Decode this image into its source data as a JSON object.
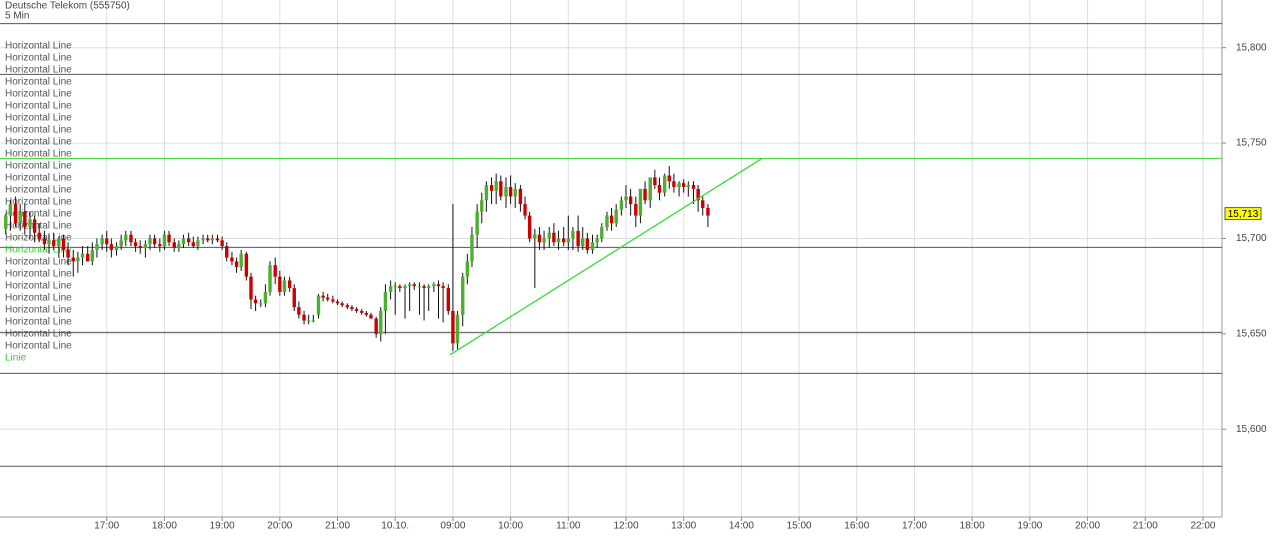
{
  "chart_data": {
    "type": "candlestick",
    "title": "Deutsche Telekom (555750)",
    "subtitle": "5 Min",
    "xlim": [
      -0.85,
      20.33
    ],
    "ylim": [
      15554,
      15825
    ],
    "xticks": [
      {
        "value": 1,
        "label": "17:00"
      },
      {
        "value": 2,
        "label": "18:00"
      },
      {
        "value": 3,
        "label": "19:00"
      },
      {
        "value": 4,
        "label": "20:00"
      },
      {
        "value": 5,
        "label": "21:00"
      },
      {
        "value": 6,
        "label": "10.10."
      },
      {
        "value": 7,
        "label": "09:00"
      },
      {
        "value": 8,
        "label": "10:00"
      },
      {
        "value": 9,
        "label": "11:00"
      },
      {
        "value": 10,
        "label": "12:00"
      },
      {
        "value": 11,
        "label": "13:00"
      },
      {
        "value": 12,
        "label": "14:00"
      },
      {
        "value": 13,
        "label": "15:00"
      },
      {
        "value": 14,
        "label": "16:00"
      },
      {
        "value": 15,
        "label": "17:00"
      },
      {
        "value": 16,
        "label": "18:00"
      },
      {
        "value": 17,
        "label": "19:00"
      },
      {
        "value": 18,
        "label": "20:00"
      },
      {
        "value": 19,
        "label": "21:00"
      },
      {
        "value": 20,
        "label": "22:00"
      }
    ],
    "yticks": [
      {
        "value": 15600,
        "label": "15,600"
      },
      {
        "value": 15650,
        "label": "15,650"
      },
      {
        "value": 15700,
        "label": "15,700"
      },
      {
        "value": 15750,
        "label": "15,750"
      },
      {
        "value": 15800,
        "label": "15,800"
      }
    ],
    "grid": true,
    "up_color": "#4caf32",
    "down_color": "#cc0000",
    "candles": {
      "x": [
        -0.75,
        -0.67,
        -0.58,
        -0.5,
        -0.42,
        -0.33,
        -0.25,
        -0.17,
        -0.08,
        0,
        0.08,
        0.17,
        0.25,
        0.33,
        0.42,
        0.5,
        0.58,
        0.67,
        0.75,
        0.83,
        0.92,
        1,
        1.08,
        1.17,
        1.25,
        1.33,
        1.42,
        1.5,
        1.58,
        1.67,
        1.75,
        1.83,
        1.92,
        2,
        2.08,
        2.17,
        2.25,
        2.33,
        2.42,
        2.5,
        2.58,
        2.67,
        2.75,
        2.83,
        2.92,
        3,
        3.08,
        3.17,
        3.25,
        3.33,
        3.42,
        3.5,
        3.58,
        3.67,
        3.75,
        3.83,
        3.92,
        4,
        4.08,
        4.17,
        4.25,
        4.33,
        4.42,
        4.5,
        4.58,
        4.67,
        4.75,
        4.83,
        4.92,
        5,
        5.08,
        5.17,
        5.25,
        5.33,
        5.42,
        5.5,
        5.58,
        5.67,
        5.75,
        5.83,
        5.92,
        6,
        6.08,
        6.17,
        6.25,
        6.33,
        6.42,
        6.5,
        6.58,
        6.67,
        6.75,
        6.83,
        6.92,
        7,
        7.08,
        7.17,
        7.25,
        7.33,
        7.42,
        7.5,
        7.58,
        7.67,
        7.75,
        7.83,
        7.92,
        8,
        8.08,
        8.17,
        8.25,
        8.33,
        8.42,
        8.5,
        8.58,
        8.67,
        8.75,
        8.83,
        8.92,
        9,
        9.08,
        9.17,
        9.25,
        9.33,
        9.42,
        9.5,
        9.58,
        9.67,
        9.75,
        9.83,
        9.92,
        10,
        10.08,
        10.17,
        10.25,
        10.33,
        10.42,
        10.5,
        10.58,
        10.67,
        10.75,
        10.83,
        10.92,
        11,
        11.08,
        11.17,
        11.25,
        11.33,
        11.42
      ],
      "open": [
        15705,
        15712,
        15718,
        15708,
        15714,
        15706,
        15710,
        15703,
        15700,
        15697,
        15699,
        15696,
        15700,
        15694,
        15690,
        15688,
        15690,
        15692,
        15688,
        15694,
        15697,
        15700,
        15697,
        15694,
        15696,
        15699,
        15702,
        15698,
        15696,
        15695,
        15697,
        15700,
        15697,
        15696,
        15702,
        15698,
        15695,
        15697,
        15700,
        15698,
        15696,
        15699,
        15700,
        15699,
        15700,
        15699,
        15696,
        15690,
        15688,
        15685,
        15692,
        15680,
        15668,
        15666,
        15666,
        15672,
        15686,
        15680,
        15672,
        15678,
        15674,
        15664,
        15660,
        15657,
        15657,
        15660,
        15670,
        15669,
        15668,
        15667,
        15666,
        15665,
        15664,
        15663,
        15662,
        15661,
        15660,
        15658,
        15650,
        15662,
        15672,
        15675,
        15675,
        15674,
        15675,
        15676,
        15675,
        15675,
        15674,
        15675,
        15676,
        15675,
        15674,
        15662,
        15645,
        15660,
        15680,
        15688,
        15702,
        15714,
        15720,
        15728,
        15725,
        15730,
        15722,
        15727,
        15722,
        15726,
        15718,
        15712,
        15700,
        15702,
        15698,
        15700,
        15703,
        15698,
        15700,
        15698,
        15700,
        15704,
        15696,
        15700,
        15694,
        15698,
        15700,
        15706,
        15712,
        15708,
        15715,
        15720,
        15722,
        15718,
        15712,
        15726,
        15720,
        15732,
        15728,
        15724,
        15733,
        15730,
        15727,
        15729,
        15727,
        15728,
        15726,
        15720,
        15716
      ],
      "high": [
        15713,
        15720,
        15722,
        15718,
        15718,
        15714,
        15712,
        15708,
        15704,
        15702,
        15703,
        15701,
        15702,
        15698,
        15694,
        15693,
        15696,
        15696,
        15698,
        15700,
        15702,
        15704,
        15700,
        15698,
        15702,
        15704,
        15704,
        15700,
        15699,
        15699,
        15702,
        15702,
        15700,
        15704,
        15704,
        15700,
        15699,
        15702,
        15703,
        15701,
        15701,
        15702,
        15702,
        15702,
        15702,
        15701,
        15698,
        15693,
        15690,
        15694,
        15693,
        15682,
        15670,
        15668,
        15676,
        15688,
        15690,
        15683,
        15680,
        15680,
        15676,
        15667,
        15662,
        15660,
        15660,
        15671,
        15672,
        15671,
        15670,
        15668,
        15667,
        15666,
        15665,
        15664,
        15663,
        15662,
        15661,
        15659,
        15664,
        15676,
        15678,
        15677,
        15676,
        15676,
        15677,
        15677,
        15677,
        15676,
        15676,
        15677,
        15678,
        15677,
        15676,
        15718,
        15662,
        15682,
        15692,
        15706,
        15718,
        15724,
        15730,
        15732,
        15734,
        15733,
        15732,
        15733,
        15729,
        15728,
        15722,
        15714,
        15705,
        15706,
        15704,
        15706,
        15708,
        15704,
        15706,
        15712,
        15706,
        15712,
        15706,
        15703,
        15702,
        15702,
        15708,
        15714,
        15716,
        15718,
        15722,
        15728,
        15726,
        15722,
        15718,
        15730,
        15728,
        15736,
        15732,
        15734,
        15738,
        15734,
        15730,
        15731,
        15730,
        15730,
        15728,
        15722,
        15718
      ],
      "low": [
        15702,
        15704,
        15706,
        15704,
        15702,
        15700,
        15698,
        15698,
        15694,
        15692,
        15694,
        15690,
        15690,
        15686,
        15680,
        15682,
        15686,
        15688,
        15686,
        15690,
        15694,
        15693,
        15690,
        15691,
        15694,
        15696,
        15696,
        15693,
        15692,
        15690,
        15694,
        15695,
        15693,
        15694,
        15696,
        15693,
        15693,
        15695,
        15696,
        15695,
        15694,
        15697,
        15698,
        15697,
        15698,
        15694,
        15688,
        15686,
        15682,
        15683,
        15678,
        15663,
        15662,
        15664,
        15664,
        15670,
        15676,
        15670,
        15670,
        15672,
        15662,
        15658,
        15655,
        15655,
        15656,
        15658,
        15667,
        15667,
        15666,
        15665,
        15664,
        15663,
        15662,
        15661,
        15660,
        15659,
        15658,
        15648,
        15646,
        15650,
        15668,
        15660,
        15672,
        15658,
        15662,
        15673,
        15660,
        15657,
        15662,
        15672,
        15658,
        15656,
        15660,
        15641,
        15642,
        15654,
        15676,
        15685,
        15695,
        15708,
        15714,
        15718,
        15718,
        15720,
        15716,
        15718,
        15716,
        15714,
        15710,
        15698,
        15674,
        15694,
        15694,
        15695,
        15696,
        15694,
        15696,
        15694,
        15694,
        15693,
        15694,
        15692,
        15692,
        15695,
        15698,
        15704,
        15704,
        15706,
        15712,
        15716,
        15712,
        15706,
        15708,
        15718,
        15716,
        15726,
        15720,
        15722,
        15726,
        15724,
        15722,
        15724,
        15722,
        15718,
        15714,
        15712,
        15706
      ],
      "close": [
        15712,
        15718,
        15708,
        15714,
        15706,
        15710,
        15703,
        15700,
        15697,
        15699,
        15696,
        15700,
        15694,
        15690,
        15688,
        15690,
        15692,
        15688,
        15694,
        15697,
        15700,
        15697,
        15694,
        15696,
        15699,
        15702,
        15698,
        15696,
        15695,
        15697,
        15700,
        15697,
        15696,
        15702,
        15698,
        15695,
        15697,
        15700,
        15698,
        15696,
        15699,
        15700,
        15699,
        15700,
        15699,
        15696,
        15690,
        15688,
        15685,
        15692,
        15680,
        15668,
        15666,
        15666,
        15672,
        15686,
        15680,
        15672,
        15678,
        15674,
        15664,
        15660,
        15657,
        15657,
        15657,
        15670,
        15669,
        15668,
        15667,
        15666,
        15665,
        15664,
        15663,
        15662,
        15661,
        15660,
        15658,
        15650,
        15662,
        15672,
        15675,
        15675,
        15674,
        15675,
        15676,
        15675,
        15675,
        15674,
        15675,
        15676,
        15675,
        15674,
        15662,
        15645,
        15660,
        15680,
        15688,
        15702,
        15714,
        15720,
        15728,
        15725,
        15730,
        15722,
        15727,
        15722,
        15726,
        15718,
        15712,
        15700,
        15702,
        15698,
        15700,
        15703,
        15698,
        15700,
        15698,
        15700,
        15704,
        15696,
        15700,
        15694,
        15698,
        15700,
        15706,
        15712,
        15708,
        15715,
        15720,
        15722,
        15718,
        15712,
        15726,
        15720,
        15732,
        15728,
        15724,
        15733,
        15730,
        15727,
        15729,
        15727,
        15728,
        15726,
        15720,
        15716,
        15712
      ]
    },
    "horizontal_lines": [
      {
        "value": 15812.6,
        "color": "#555555"
      },
      {
        "value": 15786,
        "color": "#555555"
      },
      {
        "value": 15742,
        "color": "#33dd33"
      },
      {
        "value": 15695.3,
        "color": "#555555"
      },
      {
        "value": 15650.8,
        "color": "#555555"
      },
      {
        "value": 15629.3,
        "color": "#555555"
      },
      {
        "value": 15580.6,
        "color": "#555555"
      }
    ],
    "trend_line": {
      "x": [
        6.95,
        12.36
      ],
      "y": [
        15639,
        15742
      ],
      "color": "#33dd33"
    },
    "last_price": {
      "value": 15713,
      "label": "15,713"
    },
    "drawing_labels": [
      {
        "text": "Horizontal Line",
        "color": "#555555"
      },
      {
        "text": "Horizontal Line",
        "color": "#555555"
      },
      {
        "text": "Horizontal Line",
        "color": "#555555"
      },
      {
        "text": "Horizontal Line",
        "color": "#555555"
      },
      {
        "text": "Horizontal Line",
        "color": "#555555"
      },
      {
        "text": "Horizontal Line",
        "color": "#555555"
      },
      {
        "text": "Horizontal Line",
        "color": "#555555"
      },
      {
        "text": "Horizontal Line",
        "color": "#555555"
      },
      {
        "text": "Horizontal Line",
        "color": "#555555"
      },
      {
        "text": "Horizontal Line",
        "color": "#555555"
      },
      {
        "text": "Horizontal Line",
        "color": "#555555"
      },
      {
        "text": "Horizontal Line",
        "color": "#555555"
      },
      {
        "text": "Horizontal Line",
        "color": "#555555"
      },
      {
        "text": "Horizontal Line",
        "color": "#555555"
      },
      {
        "text": "Horizontal Line",
        "color": "#555555"
      },
      {
        "text": "Horizontal Line",
        "color": "#555555"
      },
      {
        "text": "Horizontal Line",
        "color": "#555555"
      },
      {
        "text": "Horizontal Line",
        "color": "#33cc33"
      },
      {
        "text": "Horizontal Line",
        "color": "#555555"
      },
      {
        "text": "Horizontal Line",
        "color": "#555555"
      },
      {
        "text": "Horizontal Line",
        "color": "#555555"
      },
      {
        "text": "Horizontal Line",
        "color": "#555555"
      },
      {
        "text": "Horizontal Line",
        "color": "#555555"
      },
      {
        "text": "Horizontal Line",
        "color": "#555555"
      },
      {
        "text": "Horizontal Line",
        "color": "#555555"
      },
      {
        "text": "Horizontal Line",
        "color": "#555555"
      },
      {
        "text": "Linie",
        "color": "#33cc33"
      }
    ]
  }
}
